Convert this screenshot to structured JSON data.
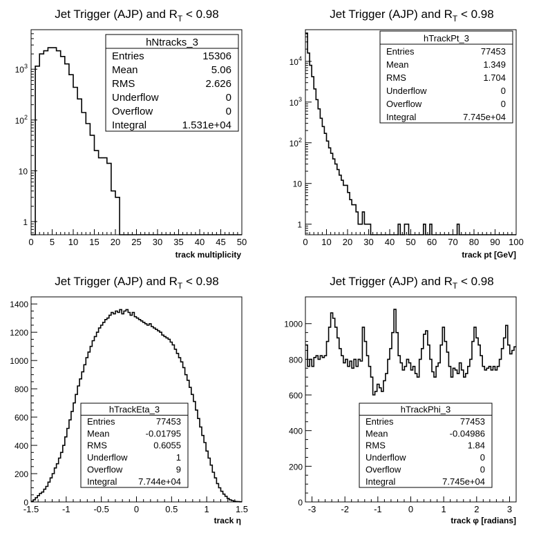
{
  "chart_data": [
    {
      "type": "histogram",
      "title_main": "Jet Trigger (AJP) and R",
      "title_sub": "T",
      "title_tail": " < 0.98",
      "xlabel": "track multiplicity",
      "xlim": [
        0,
        50
      ],
      "ylog": true,
      "ylim": [
        0.55,
        6000
      ],
      "xticks": [
        0,
        5,
        10,
        15,
        20,
        25,
        30,
        35,
        40,
        45,
        50
      ],
      "xtick_labels": [
        "0",
        "5",
        "10",
        "15",
        "20",
        "25",
        "30",
        "35",
        "40",
        "45",
        "50"
      ],
      "yticks_major": [
        1,
        10,
        100,
        1000
      ],
      "ytick_bases": [
        "1",
        "10",
        "10",
        "10"
      ],
      "ytick_exps": [
        "",
        "",
        "2",
        "3"
      ],
      "bins": {
        "x0": 0,
        "width": 1,
        "values": [
          0.5,
          1150,
          2000,
          2300,
          2650,
          2650,
          2300,
          1780,
          1270,
          780,
          440,
          260,
          140,
          85,
          50,
          25,
          18,
          18,
          14,
          4,
          3,
          0,
          0,
          0,
          0,
          0,
          0,
          0,
          0,
          0,
          0,
          0,
          0,
          0,
          0,
          0,
          0,
          0,
          0,
          0,
          0,
          0,
          0,
          0,
          0,
          0,
          0,
          0,
          0,
          0
        ]
      },
      "stats": {
        "name": "hNtracks_3",
        "rows": [
          {
            "label": "Entries",
            "value": "15306"
          },
          {
            "label": "Mean",
            "value": "5.06"
          },
          {
            "label": "RMS",
            "value": "2.626"
          },
          {
            "label": "Underflow",
            "value": "0"
          },
          {
            "label": "Overflow",
            "value": "0"
          },
          {
            "label": "Integral",
            "value": "1.531e+04"
          }
        ]
      }
    },
    {
      "type": "histogram",
      "title_main": "Jet Trigger (AJP) and R",
      "title_sub": "T",
      "title_tail": " < 0.98",
      "xlabel": "track pt [GeV]",
      "xlim": [
        0,
        100
      ],
      "ylog": true,
      "ylim": [
        0.55,
        60000
      ],
      "xticks": [
        0,
        10,
        20,
        30,
        40,
        50,
        60,
        70,
        80,
        90,
        100
      ],
      "xtick_labels": [
        "0",
        "10",
        "20",
        "30",
        "40",
        "50",
        "60",
        "70",
        "80",
        "90",
        "100"
      ],
      "yticks_major": [
        1,
        10,
        100,
        1000,
        10000
      ],
      "ytick_bases": [
        "1",
        "10",
        "10",
        "10",
        "10"
      ],
      "ytick_exps": [
        "",
        "",
        "2",
        "3",
        "4"
      ],
      "bins": {
        "x0": 0,
        "width": 1,
        "values": [
          48000,
          16000,
          8000,
          4200,
          2100,
          1150,
          680,
          400,
          250,
          170,
          110,
          75,
          55,
          40,
          30,
          22,
          16,
          12,
          9,
          9,
          6,
          4,
          3,
          3,
          2,
          1,
          1,
          2,
          1,
          1,
          1,
          0,
          0,
          0,
          0,
          0,
          0,
          0,
          0,
          0,
          0,
          0,
          0,
          0,
          1,
          0,
          0,
          1,
          1,
          0,
          0,
          0,
          0,
          0,
          0,
          0,
          1,
          0,
          0,
          1,
          0,
          0,
          0,
          0,
          0,
          0,
          0,
          0,
          0,
          0,
          0,
          0,
          1,
          0,
          0,
          0,
          0,
          0,
          0,
          0,
          0,
          0,
          0,
          0,
          0,
          0,
          0,
          0,
          0,
          0,
          0,
          0,
          0,
          0,
          0,
          0,
          0,
          0,
          0,
          0
        ]
      },
      "stats": {
        "name": "hTrackPt_3",
        "rows": [
          {
            "label": "Entries",
            "value": "77453"
          },
          {
            "label": "Mean",
            "value": "1.349"
          },
          {
            "label": "RMS",
            "value": "1.704"
          },
          {
            "label": "Underflow",
            "value": "0"
          },
          {
            "label": "Overflow",
            "value": "0"
          },
          {
            "label": "Integral",
            "value": "7.745e+04"
          }
        ]
      }
    },
    {
      "type": "histogram",
      "title_main": "Jet Trigger (AJP) and R",
      "title_sub": "T",
      "title_tail": " < 0.98",
      "xlabel": "track η",
      "xlim": [
        -1.5,
        1.5
      ],
      "ylog": false,
      "ylim": [
        0,
        1450
      ],
      "xticks": [
        -1.5,
        -1,
        -0.5,
        0,
        0.5,
        1,
        1.5
      ],
      "xtick_labels": [
        "-1.5",
        "-1",
        "-0.5",
        "0",
        "0.5",
        "1",
        "1.5"
      ],
      "yticks_major": [
        0,
        200,
        400,
        600,
        800,
        1000,
        1200,
        1400
      ],
      "ytick_labels": [
        "0",
        "200",
        "400",
        "600",
        "800",
        "1000",
        "1200",
        "1400"
      ],
      "bins": {
        "x0": -1.5,
        "width": 0.03,
        "values": [
          5,
          15,
          30,
          45,
          60,
          70,
          90,
          110,
          140,
          170,
          200,
          240,
          270,
          310,
          350,
          400,
          460,
          520,
          580,
          640,
          700,
          760,
          820,
          870,
          920,
          970,
          1020,
          1060,
          1100,
          1140,
          1170,
          1200,
          1230,
          1250,
          1270,
          1290,
          1300,
          1320,
          1340,
          1330,
          1350,
          1340,
          1360,
          1330,
          1350,
          1360,
          1340,
          1320,
          1340,
          1310,
          1300,
          1290,
          1280,
          1270,
          1260,
          1250,
          1260,
          1240,
          1230,
          1220,
          1210,
          1200,
          1180,
          1170,
          1160,
          1150,
          1130,
          1110,
          1080,
          1050,
          1020,
          990,
          950,
          900,
          860,
          810,
          760,
          710,
          650,
          590,
          530,
          470,
          420,
          360,
          310,
          260,
          210,
          170,
          130,
          100,
          75,
          55,
          40,
          25,
          15,
          10,
          5,
          3,
          2,
          1
        ]
      },
      "stats": {
        "name": "hTrackEta_3",
        "rows": [
          {
            "label": "Entries",
            "value": "77453"
          },
          {
            "label": "Mean",
            "value": "-0.01795"
          },
          {
            "label": "RMS",
            "value": "0.6055"
          },
          {
            "label": "Underflow",
            "value": "1"
          },
          {
            "label": "Overflow",
            "value": "9"
          },
          {
            "label": "Integral",
            "value": "7.744e+04"
          }
        ]
      }
    },
    {
      "type": "histogram",
      "title_main": "Jet Trigger (AJP) and R",
      "title_sub": "T",
      "title_tail": " < 0.98",
      "xlabel": "track φ [radians]",
      "xlim": [
        -3.2,
        3.2
      ],
      "ylog": false,
      "ylim": [
        0,
        1150
      ],
      "xticks": [
        -3,
        -2,
        -1,
        0,
        1,
        2,
        3
      ],
      "xtick_labels": [
        "-3",
        "-2",
        "-1",
        "0",
        "1",
        "2",
        "3"
      ],
      "yticks_major": [
        0,
        200,
        400,
        600,
        800,
        1000
      ],
      "ytick_labels": [
        "0",
        "200",
        "400",
        "600",
        "800",
        "1000"
      ],
      "bins": {
        "x0": -3.2,
        "width": 0.064,
        "values": [
          880,
          760,
          800,
          760,
          810,
          820,
          800,
          820,
          810,
          820,
          900,
          980,
          1060,
          1030,
          980,
          920,
          860,
          820,
          780,
          800,
          760,
          790,
          750,
          800,
          760,
          800,
          790,
          980,
          900,
          820,
          760,
          700,
          600,
          620,
          660,
          640,
          620,
          680,
          720,
          800,
          860,
          950,
          1080,
          950,
          820,
          780,
          740,
          760,
          800,
          780,
          740,
          760,
          720,
          700,
          800,
          860,
          940,
          960,
          880,
          800,
          730,
          700,
          760,
          780,
          880,
          980,
          900,
          840,
          760,
          700,
          750,
          740,
          720,
          780,
          740,
          700,
          720,
          760,
          800,
          900,
          980,
          920,
          880,
          820,
          760,
          740,
          750,
          760,
          740,
          760,
          740,
          760,
          800,
          860,
          920,
          990,
          880,
          830,
          850,
          870
        ]
      },
      "stats": {
        "name": "hTrackPhi_3",
        "rows": [
          {
            "label": "Entries",
            "value": "77453"
          },
          {
            "label": "Mean",
            "value": "-0.04986"
          },
          {
            "label": "RMS",
            "value": "1.84"
          },
          {
            "label": "Underflow",
            "value": "0"
          },
          {
            "label": "Overflow",
            "value": "0"
          },
          {
            "label": "Integral",
            "value": "7.745e+04"
          }
        ]
      }
    }
  ]
}
